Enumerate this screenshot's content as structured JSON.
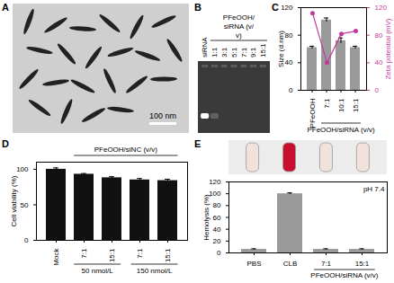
{
  "chart_data": [
    {
      "panel": "A",
      "type": "image",
      "scale_bar": "100 nm"
    },
    {
      "panel": "B",
      "type": "gel",
      "categories": [
        "siRNA",
        "1:1",
        "3:1",
        "5:1",
        "7:1",
        "9:1",
        "15:1"
      ],
      "groups": [
        null,
        "PFeOOH/siRNA (v/v)",
        "PFeOOH/siRNA (v/v)",
        "PFeOOH/siRNA (v/v)",
        "PFeOOH/siRNA (v/v)",
        "PFeOOH/siRNA (v/v)",
        "PFeOOH/siRNA (v/v)"
      ],
      "band_intensity": [
        1,
        0.2,
        0,
        0,
        0,
        0,
        0
      ]
    },
    {
      "panel": "C",
      "type": "bar",
      "categories": [
        "PFeOOH",
        "7:1",
        "10:1",
        "15:1"
      ],
      "groups": [
        null,
        "PFeOOH/siRNA (v/v)",
        "PFeOOH/siRNA (v/v)",
        "PFeOOH/siRNA (v/v)"
      ],
      "ylabel": "Size (d.nm)",
      "ylim": [
        0,
        120
      ],
      "yticks": [
        0,
        40,
        80,
        120
      ],
      "y2label": "Zeta potential (mV)",
      "y2lim": [
        0,
        120
      ],
      "y2ticks": [
        0,
        40,
        80,
        120
      ],
      "series": [
        {
          "type": "bar",
          "color": "#9a9a9a",
          "values": [
            62,
            102,
            72,
            62
          ],
          "errors": [
            2,
            3,
            4,
            2
          ]
        },
        {
          "type": "line",
          "axis": "y2",
          "color": "#c2399e",
          "marker": "circle",
          "values": [
            112,
            40,
            82,
            86
          ]
        }
      ]
    },
    {
      "panel": "D",
      "type": "bar",
      "header": "PFeOOH/siNC (v/v)",
      "categories": [
        "Mock",
        "7:1",
        "15:1",
        "7:1",
        "15:1"
      ],
      "groups": [
        null,
        "50 nmol/L",
        "50 nmol/L",
        "150 nmol/L",
        "150 nmol/L"
      ],
      "ylabel": "Cell viability (%)",
      "ylim": [
        0,
        110
      ],
      "yticks": [
        0,
        50,
        100
      ],
      "color": "#111111",
      "values": [
        100,
        93,
        88,
        85,
        84
      ],
      "errors": [
        2,
        1,
        1.5,
        2,
        2
      ]
    },
    {
      "panel": "E",
      "type": "bar",
      "annotation": "pH 7.4",
      "categories": [
        "PBS",
        "CLB",
        "7:1",
        "15:1"
      ],
      "groups": [
        null,
        null,
        "PFeOOH/siRNA (v/v)",
        "PFeOOH/siRNA (v/v)"
      ],
      "ylabel": "Hemolysis (%)",
      "ylim": [
        0,
        120
      ],
      "yticks": [
        0,
        20,
        40,
        60,
        80,
        100,
        120
      ],
      "color": "#9a9a9a",
      "values": [
        6,
        100,
        6,
        6
      ],
      "errors": [
        1,
        1.5,
        1,
        1
      ]
    }
  ]
}
